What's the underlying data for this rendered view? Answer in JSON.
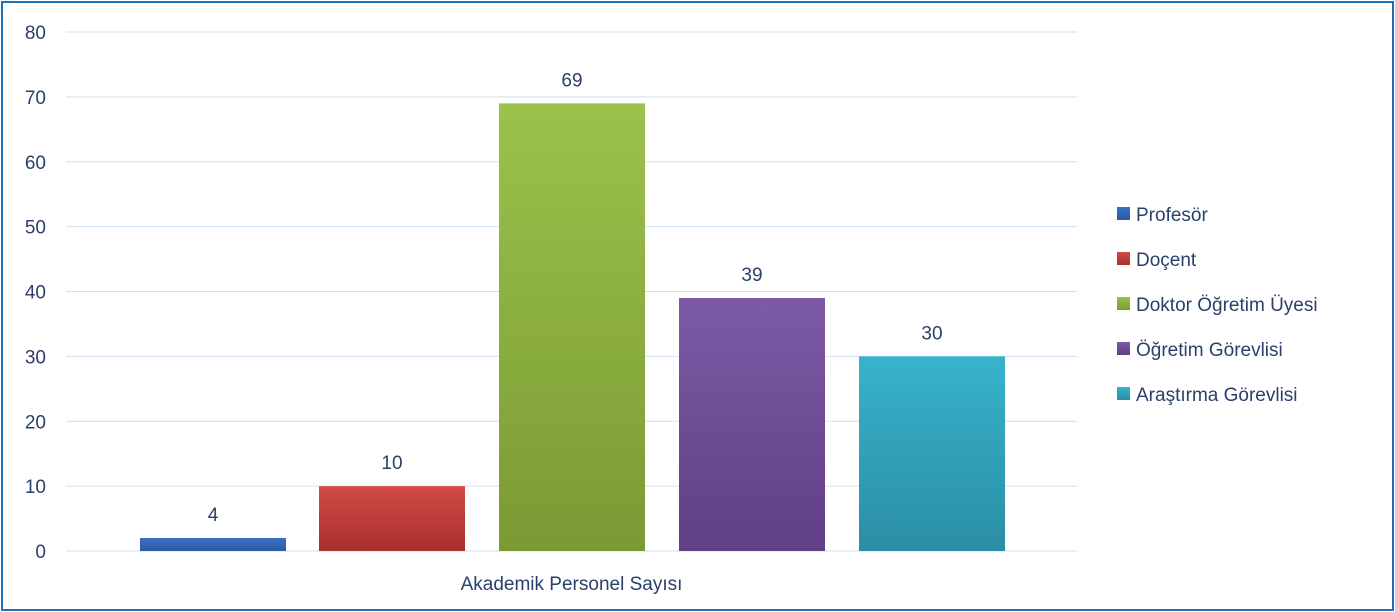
{
  "chart_data": {
    "type": "bar",
    "categories": [
      "Akademik Personel Sayısı"
    ],
    "series": [
      {
        "name": "Profesör",
        "values": [
          4
        ],
        "color": "#3a6fc4",
        "color_dark": "#2d5aa3"
      },
      {
        "name": "Doçent",
        "values": [
          10
        ],
        "color": "#d24a46",
        "color_dark": "#a8302d"
      },
      {
        "name": "Doktor Öğretim Üyesi",
        "values": [
          69
        ],
        "color": "#9bc24a",
        "color_dark": "#7a9a34"
      },
      {
        "name": "Öğretim Görevlisi",
        "values": [
          39
        ],
        "color": "#7d5aa6",
        "color_dark": "#5f3f85"
      },
      {
        "name": "Araştırma Görevlisi",
        "values": [
          30
        ],
        "color": "#37b3cc",
        "color_dark": "#2a8ea4"
      }
    ],
    "data_labels": [
      "4",
      "10",
      "69",
      "39",
      "30"
    ],
    "y_ticks": [
      0,
      10,
      20,
      30,
      40,
      50,
      60,
      70,
      80
    ],
    "ylim": [
      0,
      80
    ],
    "grid": true,
    "legend_position": "right"
  }
}
